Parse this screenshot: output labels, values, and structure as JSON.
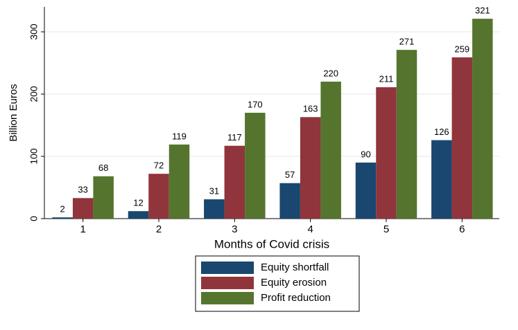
{
  "chart_data": {
    "type": "bar",
    "categories": [
      "1",
      "2",
      "3",
      "4",
      "5",
      "6"
    ],
    "series": [
      {
        "name": "Equity shortfall",
        "color": "#1a476f",
        "values": [
          2,
          12,
          31,
          57,
          90,
          126
        ]
      },
      {
        "name": "Equity erosion",
        "color": "#90353b",
        "values": [
          33,
          72,
          117,
          163,
          211,
          259
        ]
      },
      {
        "name": "Profit reduction",
        "color": "#55752f",
        "values": [
          68,
          119,
          170,
          220,
          271,
          321
        ]
      }
    ],
    "xlabel": "Months of Covid crisis",
    "ylabel": "Billion Euros",
    "ylim": [
      0,
      340
    ],
    "yticks": [
      0,
      100,
      200,
      300
    ],
    "grid": true,
    "legend": "bottom"
  }
}
